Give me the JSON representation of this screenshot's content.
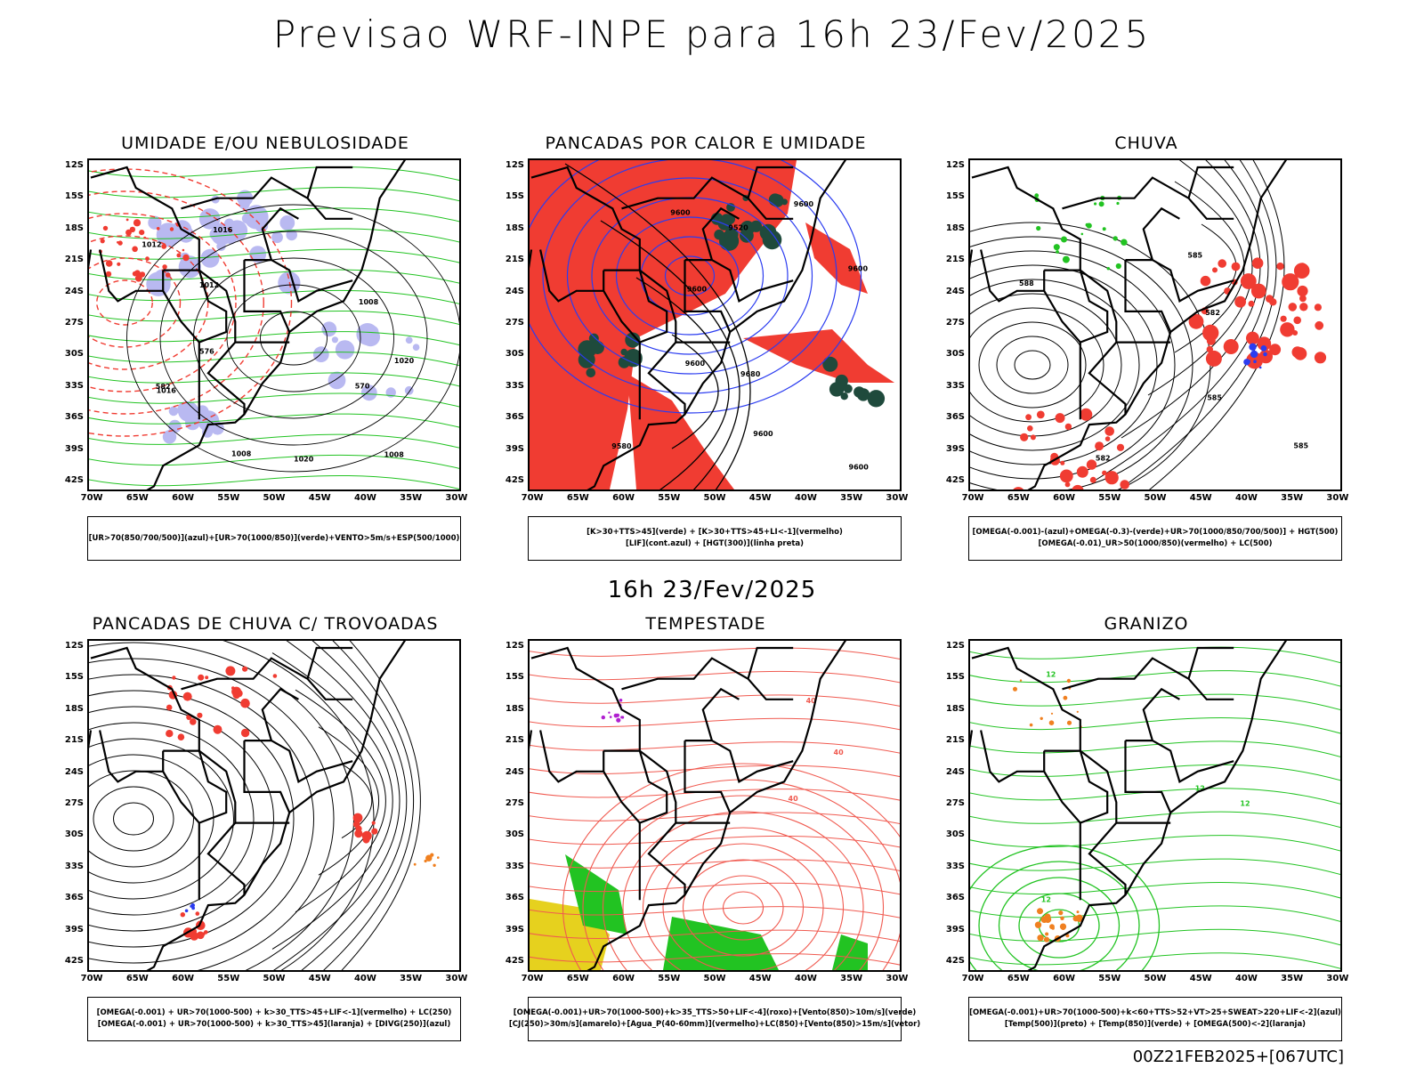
{
  "main_title": "Previsao WRF-INPE  para 16h 23/Fev/2025",
  "middle_time": "16h 23/Fev/2025",
  "run_id": "00Z21FEB2025+[067UTC]",
  "lat_labels": [
    "12S",
    "15S",
    "18S",
    "21S",
    "24S",
    "27S",
    "30S",
    "33S",
    "36S",
    "39S",
    "42S"
  ],
  "lon_labels": [
    "70W",
    "65W",
    "60W",
    "55W",
    "50W",
    "45W",
    "40W",
    "35W",
    "30W"
  ],
  "colors": {
    "red": "#f03c32",
    "green": "#22c322",
    "blue": "#2b3cf0",
    "lavender": "#a8a8ee",
    "darkgreen": "#1f4a3c",
    "yellow": "#e6d11e",
    "orange": "#f08020",
    "purple": "#b020d0",
    "salmon": "#f05a50"
  },
  "panels": [
    {
      "id": "umidade",
      "title": "UMIDADE E/OU NEBULOSIDADE",
      "legend": [
        "[UR>70(850/700/500)](azul)+[UR>70(1000/850)](verde)+VENTO>5m/s+ESP(500/1000)"
      ],
      "contour_labels": [
        "1008",
        "1008",
        "1008",
        "1012",
        "1016",
        "1020",
        "1012",
        "1016",
        "1020",
        "570",
        "576",
        "582"
      ]
    },
    {
      "id": "pancadas-calor",
      "title": "PANCADAS POR CALOR E UMIDADE",
      "legend": [
        "[K>30+TTS>45](verde) + [K>30+TTS>45+LI<-1](vermelho)",
        "[LIF](cont.azul) + [HGT(300)](linha preta)"
      ],
      "contour_labels": [
        "9600",
        "9600",
        "9680",
        "9600",
        "9600",
        "9520",
        "9600",
        "9580",
        "9600",
        "9600"
      ]
    },
    {
      "id": "chuva",
      "title": "CHUVA",
      "legend": [
        "[OMEGA(-0.001)-(azul)+OMEGA(-0.3)-(verde)+UR>70(1000/850/700/500)] + HGT(500)",
        "[OMEGA(-0.01)_UR>50(1000/850)(vermelho) + LC(500)"
      ],
      "contour_labels": [
        "585",
        "585",
        "582",
        "582",
        "588",
        "585"
      ]
    },
    {
      "id": "trovoadas",
      "title": "PANCADAS DE CHUVA C/ TROVOADAS",
      "legend": [
        "[OMEGA(-0.001) + UR>70(1000-500) + k>30_TTS>45+LIF<-1](vermelho) + LC(250)",
        "[OMEGA(-0.001) + UR>70(1000-500) + k>30_TTS>45](laranja) + [DIVG(250)](azul)"
      ],
      "contour_labels": []
    },
    {
      "id": "tempestade",
      "title": "TEMPESTADE",
      "legend": [
        "[OMEGA(-0.001)+UR>70(1000-500)+k>35_TTS>50+LIF<-4](roxo)+[Vento(850)>10m/s](verde)",
        "[CJ(250)>30m/s](amarelo)+[Agua_P(40-60mm)](vermelho)+LC(850)+[Vento(850)>15m/s](vetor)"
      ],
      "contour_labels": [
        "40",
        "40",
        "40"
      ]
    },
    {
      "id": "granizo",
      "title": "GRANIZO",
      "legend": [
        "[OMEGA(-0.001)+UR>70(1000-500)+k<60+TTS>52+VT>25+SWEAT>220+LIF<-2](azul)",
        "[Temp(500)](preto) + [Temp(850)](verde) + [OMEGA(500)<-2](laranja)"
      ],
      "contour_labels": [
        "12",
        "12",
        "12",
        "12"
      ]
    }
  ]
}
